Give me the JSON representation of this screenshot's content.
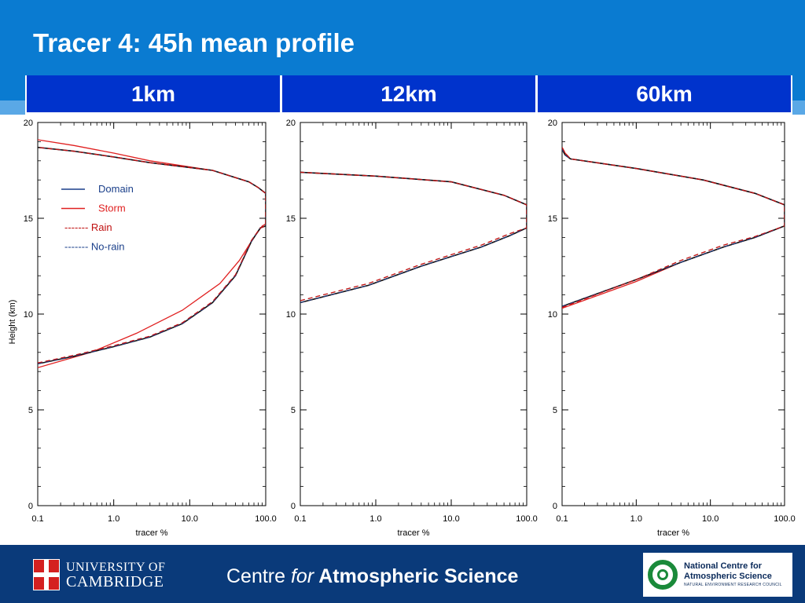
{
  "slide": {
    "title": "Tracer 4: 45h mean profile",
    "resolutions": [
      "1km",
      "12km",
      "60km"
    ]
  },
  "legend": {
    "items": [
      {
        "label": "Domain",
        "style": "solid",
        "color": "#1a3f8a"
      },
      {
        "label": "Storm",
        "style": "solid",
        "color": "#e02020"
      },
      {
        "label": "------- Rain",
        "style": "text",
        "color": "#c01010"
      },
      {
        "label": "------- No-rain",
        "style": "text",
        "color": "#1a3f8a"
      }
    ]
  },
  "chart_data": [
    {
      "type": "line",
      "panel": "1km",
      "xlabel": "tracer %",
      "ylabel": "Height (km)",
      "xscale": "log",
      "xlim": [
        0.1,
        100.0
      ],
      "ylim": [
        0,
        20
      ],
      "xticks": [
        "0.1",
        "1.0",
        "10.0",
        "100.0"
      ],
      "yticks": [
        "0",
        "5",
        "10",
        "15",
        "20"
      ],
      "series": [
        {
          "name": "Domain",
          "color": "#1a3f8a",
          "style": "solid",
          "x": [
            0.1,
            0.3,
            1,
            3,
            8,
            20,
            40,
            65,
            85,
            100,
            100,
            100,
            80,
            60,
            20,
            3,
            1,
            0.3,
            0.1
          ],
          "y": [
            7.4,
            7.8,
            8.3,
            8.8,
            9.5,
            10.6,
            12.0,
            13.8,
            14.5,
            14.6,
            15.5,
            16.3,
            16.6,
            16.9,
            17.5,
            17.9,
            18.2,
            18.5,
            18.7
          ]
        },
        {
          "name": "Storm",
          "color": "#e02020",
          "style": "solid",
          "x": [
            0.1,
            0.5,
            2,
            8,
            25,
            45,
            70,
            90,
            100,
            100,
            100,
            80,
            60,
            20,
            3,
            1,
            0.3,
            0.1
          ],
          "y": [
            7.2,
            8.0,
            9.0,
            10.2,
            11.6,
            12.8,
            14.0,
            14.6,
            14.7,
            15.5,
            16.3,
            16.6,
            16.9,
            17.5,
            18.0,
            18.4,
            18.8,
            19.1
          ]
        },
        {
          "name": "Rain",
          "color": "#c01010",
          "style": "dashed",
          "x": [
            0.1,
            0.3,
            1,
            3,
            8,
            20,
            40,
            65,
            85,
            100,
            100,
            100,
            80,
            60,
            20,
            3,
            1,
            0.3,
            0.1
          ],
          "y": [
            7.45,
            7.85,
            8.35,
            8.85,
            9.55,
            10.65,
            12.05,
            13.85,
            14.5,
            14.6,
            15.5,
            16.3,
            16.6,
            16.9,
            17.5,
            17.9,
            18.2,
            18.5,
            18.7
          ]
        },
        {
          "name": "No-rain",
          "color": "#1a3f8a",
          "style": "dashed",
          "x": [
            0.1,
            0.3,
            1,
            3,
            8,
            20,
            40,
            65,
            85,
            100,
            100,
            100,
            80,
            60,
            20,
            3,
            1,
            0.3,
            0.1
          ],
          "y": [
            7.4,
            7.8,
            8.3,
            8.8,
            9.5,
            10.6,
            12.0,
            13.8,
            14.5,
            14.6,
            15.5,
            16.3,
            16.6,
            16.9,
            17.5,
            17.9,
            18.2,
            18.5,
            18.7
          ]
        }
      ]
    },
    {
      "type": "line",
      "panel": "12km",
      "xlabel": "tracer %",
      "ylabel": "",
      "xscale": "log",
      "xlim": [
        0.1,
        100.0
      ],
      "ylim": [
        0,
        20
      ],
      "xticks": [
        "0.1",
        "1.0",
        "10.0",
        "100.0"
      ],
      "yticks": [
        "0",
        "5",
        "10",
        "15",
        "20"
      ],
      "series": [
        {
          "name": "Domain",
          "color": "#1a3f8a",
          "style": "solid",
          "x": [
            0.1,
            0.8,
            4,
            10,
            25,
            60,
            100,
            100,
            50,
            10,
            1,
            0.1
          ],
          "y": [
            10.6,
            11.5,
            12.5,
            13.0,
            13.5,
            14.1,
            14.5,
            15.7,
            16.2,
            16.9,
            17.2,
            17.4
          ]
        },
        {
          "name": "Storm",
          "color": "#e02020",
          "style": "solid",
          "x": [
            0.1,
            0.8,
            4,
            10,
            25,
            60,
            100,
            100,
            50,
            10,
            1,
            0.1
          ],
          "y": [
            10.6,
            11.5,
            12.5,
            13.0,
            13.5,
            14.1,
            14.5,
            15.7,
            16.2,
            16.9,
            17.2,
            17.4
          ]
        },
        {
          "name": "Rain",
          "color": "#c01010",
          "style": "dashed",
          "x": [
            0.1,
            0.8,
            4,
            10,
            25,
            60,
            100,
            100,
            50,
            10,
            1,
            0.1
          ],
          "y": [
            10.7,
            11.6,
            12.6,
            13.1,
            13.6,
            14.2,
            14.5,
            15.7,
            16.2,
            16.9,
            17.2,
            17.4
          ]
        },
        {
          "name": "No-rain",
          "color": "#1a3f8a",
          "style": "dashed",
          "x": [
            0.1,
            0.8,
            4,
            10,
            25,
            60,
            100,
            100,
            50,
            10,
            1,
            0.1
          ],
          "y": [
            10.6,
            11.5,
            12.5,
            13.0,
            13.5,
            14.1,
            14.5,
            15.7,
            16.2,
            16.9,
            17.2,
            17.4
          ]
        }
      ]
    },
    {
      "type": "line",
      "panel": "60km",
      "xlabel": "tracer %",
      "ylabel": "",
      "xscale": "log",
      "xlim": [
        0.1,
        100.0
      ],
      "ylim": [
        0,
        20
      ],
      "xticks": [
        "0.1",
        "1.0",
        "10.0",
        "100.0"
      ],
      "yticks": [
        "0",
        "5",
        "10",
        "15",
        "20"
      ],
      "series": [
        {
          "name": "Domain",
          "color": "#1a3f8a",
          "style": "solid",
          "x": [
            0.1,
            1,
            4,
            15,
            40,
            100,
            100,
            40,
            8,
            1,
            0.13,
            0.11,
            0.1
          ],
          "y": [
            10.4,
            11.8,
            12.7,
            13.5,
            14.0,
            14.6,
            15.7,
            16.3,
            17.0,
            17.6,
            18.1,
            18.3,
            18.6
          ]
        },
        {
          "name": "Storm",
          "color": "#e02020",
          "style": "solid",
          "x": [
            0.1,
            1,
            4,
            15,
            40,
            100,
            100,
            40,
            8,
            1,
            0.13,
            0.11,
            0.1
          ],
          "y": [
            10.3,
            11.7,
            12.7,
            13.5,
            14.0,
            14.6,
            15.7,
            16.3,
            17.0,
            17.6,
            18.1,
            18.4,
            18.7
          ]
        },
        {
          "name": "Rain",
          "color": "#c01010",
          "style": "dashed",
          "x": [
            0.1,
            1,
            4,
            15,
            40,
            100,
            100,
            40,
            8,
            1,
            0.13,
            0.11,
            0.1
          ],
          "y": [
            10.35,
            11.8,
            12.8,
            13.6,
            14.05,
            14.6,
            15.7,
            16.3,
            17.0,
            17.6,
            18.1,
            18.4,
            18.7
          ]
        },
        {
          "name": "No-rain",
          "color": "#1a3f8a",
          "style": "dashed",
          "x": [
            0.1,
            1,
            4,
            15,
            40,
            100,
            100,
            40,
            8,
            1,
            0.13,
            0.11,
            0.1
          ],
          "y": [
            10.4,
            11.8,
            12.7,
            13.5,
            14.0,
            14.6,
            15.7,
            16.3,
            17.0,
            17.6,
            18.1,
            18.3,
            18.6
          ]
        }
      ]
    }
  ],
  "footer": {
    "university_line1": "UNIVERSITY OF",
    "university_line2": "CAMBRIDGE",
    "centre_prefix": "Centre ",
    "centre_for": "for",
    "centre_suffix": " Atmospheric Science",
    "ncas_line1": "National Centre for",
    "ncas_line2": "Atmospheric Science",
    "ncas_line3": "NATURAL ENVIRONMENT RESEARCH COUNCIL"
  }
}
